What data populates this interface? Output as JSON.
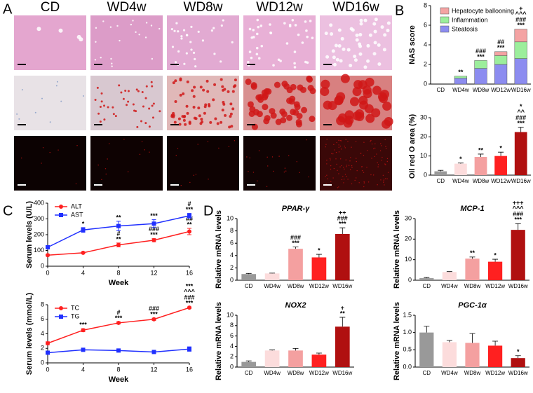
{
  "figure": {
    "panel_labels": [
      "A",
      "B",
      "C",
      "D"
    ],
    "columns": [
      "CD",
      "WD4w",
      "WD8w",
      "WD12w",
      "WD16w"
    ]
  },
  "chart_data": [
    {
      "type": "stacked-bar",
      "ylabel": "NAS score",
      "categories": [
        "CD",
        "WD4w",
        "WD8w",
        "WD12w",
        "WD16w"
      ],
      "series": [
        {
          "name": "Hepatocyte ballooning",
          "color": "#f4a3a3",
          "values": [
            0,
            0,
            0,
            0.4,
            1.3
          ]
        },
        {
          "name": "Inflammation",
          "color": "#9cee9c",
          "values": [
            0,
            0.2,
            0.8,
            0.9,
            1.7
          ]
        },
        {
          "name": "Steatosis",
          "color": "#8c8cf0",
          "values": [
            0,
            0.6,
            1.6,
            2.0,
            2.6
          ]
        }
      ],
      "annotations": [
        null,
        [
          "**"
        ],
        [
          "###",
          "***"
        ],
        [
          "##",
          "***"
        ],
        [
          "+",
          "^^^",
          "###",
          "***"
        ]
      ],
      "ylim": [
        0,
        8
      ],
      "yticks": [
        0,
        2,
        4,
        6,
        8
      ],
      "legend": "top-left"
    },
    {
      "type": "bar",
      "ylabel": "Oil red O area (%)",
      "categories": [
        "CD",
        "WD4w",
        "WD8w",
        "WD12w",
        "WD16w"
      ],
      "values": [
        2,
        6,
        9.5,
        10,
        22.5
      ],
      "errors": [
        0.5,
        0.3,
        1.5,
        2,
        2.5
      ],
      "colors": [
        "#999999",
        "#fcdcdc",
        "#f4a0a0",
        "#ff2020",
        "#b01010"
      ],
      "annotations": [
        null,
        [
          "*"
        ],
        [
          "**"
        ],
        [
          "*"
        ],
        [
          "*",
          "^^",
          "###",
          "***"
        ]
      ],
      "ylim": [
        0,
        30
      ],
      "yticks": [
        0,
        10,
        20,
        30
      ]
    },
    {
      "type": "line",
      "ylabel": "Serum levels (U/L)",
      "xlabel": "Week",
      "x": [
        0,
        4,
        8,
        12,
        16
      ],
      "series": [
        {
          "name": "ALT",
          "color": "#ff2020",
          "marker": "circle",
          "values": [
            70,
            85,
            135,
            165,
            220
          ],
          "errors": [
            5,
            5,
            12,
            10,
            20
          ],
          "annotations": [
            null,
            null,
            [
              "#",
              "**"
            ],
            [
              "###",
              "***"
            ],
            [
              "##",
              "**"
            ]
          ]
        },
        {
          "name": "AST",
          "color": "#2030ff",
          "marker": "square",
          "values": [
            120,
            230,
            255,
            270,
            320
          ],
          "errors": [
            8,
            15,
            30,
            25,
            15
          ],
          "annotations": [
            null,
            [
              "*"
            ],
            [
              "**"
            ],
            [
              "***"
            ],
            [
              "#",
              "***"
            ]
          ]
        }
      ],
      "xlim": [
        0,
        16
      ],
      "xticks": [
        0,
        4,
        8,
        12,
        16
      ],
      "ylim": [
        0,
        400
      ],
      "yticks": [
        0,
        100,
        200,
        300,
        400
      ],
      "legend": "top-left"
    },
    {
      "type": "line",
      "ylabel": "Serum levels (mmol/L)",
      "xlabel": "Week",
      "x": [
        0,
        4,
        8,
        12,
        16
      ],
      "series": [
        {
          "name": "TC",
          "color": "#ff2020",
          "marker": "circle",
          "values": [
            2.7,
            4.5,
            5.5,
            6.0,
            7.6
          ],
          "errors": [
            0.2,
            0.2,
            0.15,
            0.15,
            0.1
          ],
          "annotations": [
            null,
            [
              "***"
            ],
            [
              "#",
              "***"
            ],
            [
              "###",
              "***"
            ],
            [
              "***",
              "^^^",
              "###",
              "***"
            ]
          ]
        },
        {
          "name": "TG",
          "color": "#2030ff",
          "marker": "square",
          "values": [
            1.4,
            1.8,
            1.7,
            1.5,
            1.9
          ],
          "errors": [
            0.1,
            0.15,
            0.2,
            0.1,
            0.3
          ],
          "annotations": [
            null,
            null,
            null,
            null,
            null
          ]
        }
      ],
      "xlim": [
        0,
        16
      ],
      "xticks": [
        0,
        4,
        8,
        12,
        16
      ],
      "ylim": [
        0,
        8
      ],
      "yticks": [
        0,
        2,
        4,
        6,
        8
      ],
      "legend": "top-left"
    },
    {
      "type": "bar",
      "title": "PPAR-γ",
      "ylabel": "Relative mRNA levels",
      "categories": [
        "CD",
        "WD4w",
        "WD8w",
        "WD12w",
        "WD16w"
      ],
      "values": [
        1.0,
        1.1,
        5.1,
        3.7,
        7.5
      ],
      "errors": [
        0.1,
        0.05,
        0.3,
        0.5,
        1.0
      ],
      "colors": [
        "#999999",
        "#fcdcdc",
        "#f4a0a0",
        "#ff2020",
        "#b01010"
      ],
      "annotations": [
        null,
        null,
        [
          "###",
          "***"
        ],
        [
          "*"
        ],
        [
          "++",
          "###",
          "***"
        ]
      ],
      "ylim": [
        0,
        10
      ],
      "yticks": [
        0,
        2,
        4,
        6,
        8,
        10
      ]
    },
    {
      "type": "bar",
      "title": "MCP-1",
      "ylabel": "Relative mRNA levels",
      "categories": [
        "CD",
        "WD4w",
        "WD8w",
        "WD12w",
        "WD16w"
      ],
      "values": [
        1,
        4,
        10.5,
        9,
        24.5
      ],
      "errors": [
        0.3,
        0.2,
        0.8,
        1.2,
        3
      ],
      "colors": [
        "#999999",
        "#fcdcdc",
        "#f4a0a0",
        "#ff2020",
        "#b01010"
      ],
      "annotations": [
        null,
        null,
        [
          "**"
        ],
        [
          "*"
        ],
        [
          "+++",
          "^^^",
          "###",
          "***"
        ]
      ],
      "ylim": [
        0,
        30
      ],
      "yticks": [
        0,
        10,
        20,
        30
      ]
    },
    {
      "type": "bar",
      "title": "NOX2",
      "ylabel": "Relative mRNA levels",
      "categories": [
        "CD",
        "WD4w",
        "WD8w",
        "WD12w",
        "WD16w"
      ],
      "values": [
        1,
        3.2,
        3.2,
        2.4,
        7.8
      ],
      "errors": [
        0.2,
        0.1,
        0.4,
        0.3,
        1.8
      ],
      "colors": [
        "#999999",
        "#fcdcdc",
        "#f4a0a0",
        "#ff2020",
        "#b01010"
      ],
      "annotations": [
        null,
        null,
        null,
        null,
        [
          "+",
          "**"
        ]
      ],
      "ylim": [
        0,
        10
      ],
      "yticks": [
        0,
        2,
        4,
        6,
        8,
        10
      ]
    },
    {
      "type": "bar",
      "title": "PGC-1α",
      "ylabel": "Relative mRNA levels",
      "categories": [
        "CD",
        "WD4w",
        "WD8w",
        "WD12w",
        "WD16w"
      ],
      "values": [
        1.0,
        0.72,
        0.7,
        0.62,
        0.26
      ],
      "errors": [
        0.18,
        0.05,
        0.27,
        0.13,
        0.07
      ],
      "colors": [
        "#999999",
        "#fcdcdc",
        "#f4a0a0",
        "#ff2020",
        "#b01010"
      ],
      "annotations": [
        null,
        null,
        null,
        null,
        [
          "*"
        ]
      ],
      "ylim": [
        0,
        1.5
      ],
      "yticks": [
        {
          "value": 0,
          "label": "0.0"
        },
        0.5,
        {
          "value": 1,
          "label": "1.0"
        },
        1.5
      ]
    }
  ]
}
